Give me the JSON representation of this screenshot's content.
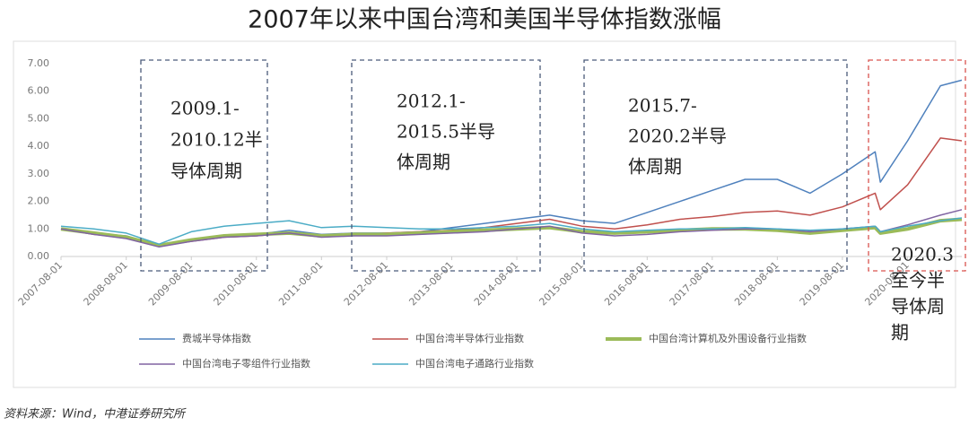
{
  "chart_data": {
    "type": "line",
    "title": "2007年以来中国台湾和美国半导体指数涨幅",
    "source": "资料来源：Wind，中港证券研究所",
    "x": [
      "2007-08-01",
      "2008-02-01",
      "2008-08-01",
      "2009-02-01",
      "2009-08-01",
      "2010-02-01",
      "2010-08-01",
      "2011-02-01",
      "2011-08-01",
      "2012-02-01",
      "2012-08-01",
      "2013-02-01",
      "2013-08-01",
      "2014-02-01",
      "2014-08-01",
      "2015-02-01",
      "2015-08-01",
      "2016-02-01",
      "2016-08-01",
      "2017-02-01",
      "2017-08-01",
      "2018-02-01",
      "2018-08-01",
      "2019-02-01",
      "2019-08-01",
      "2020-02-01",
      "2020-03-01",
      "2020-08-01",
      "2021-02-01",
      "2021-06-01"
    ],
    "xlim": [
      "2007-08-01",
      "2021-06-01"
    ],
    "xticks": [
      "2007-08-01",
      "2008-08-01",
      "2009-08-01",
      "2010-08-01",
      "2011-08-01",
      "2012-08-01",
      "2013-08-01",
      "2014-08-01",
      "2015-08-01",
      "2016-08-01",
      "2017-08-01",
      "2018-08-01",
      "2019-08-01",
      "2020-08-01"
    ],
    "ylim": [
      0,
      7
    ],
    "yticks": [
      {
        "value": 0,
        "label": "0.00"
      },
      {
        "value": 1,
        "label": "1.00"
      },
      {
        "value": 2,
        "label": "2.00"
      },
      {
        "value": 3,
        "label": "3.00"
      },
      {
        "value": 4,
        "label": "4.00"
      },
      {
        "value": 5,
        "label": "5.00"
      },
      {
        "value": 6,
        "label": "6.00"
      },
      {
        "value": 7,
        "label": "7.00"
      }
    ],
    "series": [
      {
        "name": "费城半导体指数",
        "color": "#4f81bd",
        "line_width": 1.5,
        "values": [
          1.0,
          0.85,
          0.75,
          0.4,
          0.6,
          0.75,
          0.8,
          0.95,
          0.8,
          0.85,
          0.85,
          0.9,
          1.05,
          1.2,
          1.35,
          1.5,
          1.3,
          1.2,
          1.6,
          2.0,
          2.4,
          2.8,
          2.8,
          2.3,
          3.0,
          3.8,
          2.7,
          4.2,
          6.2,
          6.4
        ]
      },
      {
        "name": "中国台湾半导体行业指数",
        "color": "#c0504d",
        "line_width": 1.5,
        "values": [
          1.0,
          0.8,
          0.7,
          0.4,
          0.55,
          0.7,
          0.75,
          0.85,
          0.75,
          0.8,
          0.85,
          0.9,
          0.95,
          1.05,
          1.2,
          1.35,
          1.1,
          1.0,
          1.15,
          1.35,
          1.45,
          1.6,
          1.65,
          1.5,
          1.8,
          2.3,
          1.7,
          2.6,
          4.3,
          4.2
        ]
      },
      {
        "name": "中国台湾计算机及外围设备行业指数",
        "color": "#9bbb59",
        "line_width": 4,
        "values": [
          1.0,
          0.85,
          0.7,
          0.4,
          0.6,
          0.75,
          0.8,
          0.85,
          0.75,
          0.8,
          0.8,
          0.85,
          0.9,
          0.95,
          1.0,
          1.05,
          0.9,
          0.85,
          0.9,
          0.95,
          1.0,
          1.0,
          0.95,
          0.85,
          0.95,
          1.05,
          0.85,
          1.0,
          1.3,
          1.35
        ]
      },
      {
        "name": "中国台湾电子零组件行业指数",
        "color": "#8064a2",
        "line_width": 1.5,
        "values": [
          1.0,
          0.8,
          0.65,
          0.35,
          0.55,
          0.7,
          0.75,
          0.85,
          0.7,
          0.75,
          0.75,
          0.8,
          0.85,
          0.9,
          1.0,
          1.1,
          0.85,
          0.75,
          0.8,
          0.9,
          0.95,
          1.0,
          1.0,
          0.9,
          1.0,
          1.1,
          0.9,
          1.15,
          1.5,
          1.7
        ]
      },
      {
        "name": "中国台湾电子通路行业指数",
        "color": "#4bacc6",
        "line_width": 1.5,
        "values": [
          1.1,
          1.0,
          0.85,
          0.45,
          0.9,
          1.1,
          1.2,
          1.3,
          1.05,
          1.1,
          1.05,
          1.0,
          1.0,
          1.05,
          1.1,
          1.2,
          1.0,
          0.9,
          0.95,
          1.0,
          1.0,
          1.05,
          1.0,
          0.95,
          1.0,
          1.1,
          0.9,
          1.1,
          1.3,
          1.4
        ]
      }
    ],
    "annotations": [
      {
        "lines": [
          "2009.1-",
          "2010.12半",
          "导体周期"
        ]
      },
      {
        "lines": [
          "2012.1-",
          "2015.5半导",
          "体周期"
        ]
      },
      {
        "lines": [
          "2015.7-",
          "2020.2半导",
          "体周期"
        ]
      },
      {
        "lines": [
          "2020.3",
          "至今半",
          "导体周",
          "期"
        ]
      }
    ]
  }
}
